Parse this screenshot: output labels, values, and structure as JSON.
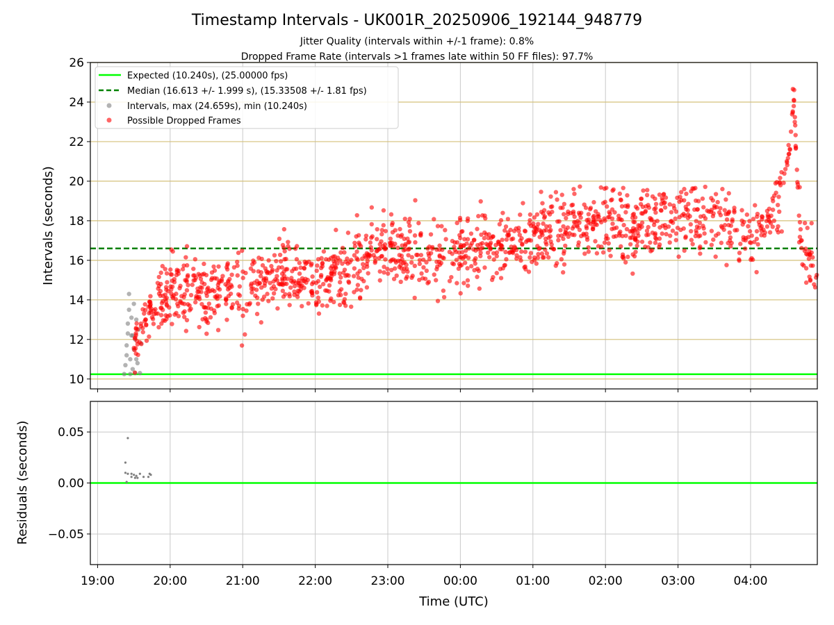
{
  "title": "Timestamp Intervals - UK001R_20250906_192144_948779",
  "subtitle_1": "Jitter Quality (intervals within +/-1 frame): 0.8%",
  "subtitle_2": "Dropped Frame Rate (intervals >1 frames late within 50 FF files): 97.7%",
  "colors": {
    "expected": "#00ff00",
    "median": "#008000",
    "intervals": "#808080",
    "dropped": "#ff0000",
    "grid_top": "#d4c07a",
    "grid": "#c8c8c8"
  },
  "chart_data": [
    {
      "type": "scatter",
      "name": "intervals",
      "ylabel": "Intervals (seconds)",
      "ylim": [
        9.5,
        26
      ],
      "yticks": [
        "10",
        "12",
        "14",
        "16",
        "18",
        "20",
        "22",
        "24",
        "26"
      ],
      "xlim_hours": [
        18.9,
        28.92
      ],
      "grid": true,
      "legend_position": "upper-left",
      "legend": [
        "Expected (10.240s), (25.00000 fps)",
        "Median (16.613 +/- 1.999 s), (15.33508 +/- 1.81 fps)",
        "Intervals, max (24.659s), min (10.240s)",
        "Possible Dropped Frames"
      ],
      "expected_line": 10.24,
      "median_line": 16.6,
      "max_interval": 24.659,
      "min_interval": 10.24,
      "dropped_trend": [
        [
          "19:30",
          11.5
        ],
        [
          "19:40",
          13.2
        ],
        [
          "19:55",
          14.2
        ],
        [
          "20:20",
          14.6
        ],
        [
          "20:40",
          14.3
        ],
        [
          "21:00",
          14.5
        ],
        [
          "21:20",
          15.0
        ],
        [
          "21:40",
          15.3
        ],
        [
          "22:00",
          14.6
        ],
        [
          "22:20",
          15.3
        ],
        [
          "22:40",
          16.2
        ],
        [
          "23:00",
          16.6
        ],
        [
          "23:30",
          16.3
        ],
        [
          "00:00",
          16.3
        ],
        [
          "00:30",
          16.7
        ],
        [
          "01:00",
          17.3
        ],
        [
          "01:30",
          17.6
        ],
        [
          "02:00",
          17.9
        ],
        [
          "02:30",
          18.0
        ],
        [
          "03:00",
          18.1
        ],
        [
          "03:30",
          18.2
        ],
        [
          "03:50",
          17.6
        ],
        [
          "04:05",
          17.4
        ],
        [
          "04:15",
          18.0
        ],
        [
          "04:25",
          19.2
        ],
        [
          "04:32",
          21.5
        ],
        [
          "04:36",
          24.3
        ],
        [
          "04:40",
          17.5
        ],
        [
          "04:55",
          15.0
        ]
      ],
      "intervals_gray": [
        [
          "19:22",
          10.25
        ],
        [
          "19:23",
          10.7
        ],
        [
          "19:24",
          11.2
        ],
        [
          "19:24",
          11.7
        ],
        [
          "19:25",
          12.3
        ],
        [
          "19:25",
          12.8
        ],
        [
          "19:26",
          13.5
        ],
        [
          "19:26",
          14.3
        ],
        [
          "19:27",
          10.25
        ],
        [
          "19:27",
          11.0
        ],
        [
          "19:28",
          12.2
        ],
        [
          "19:28",
          13.1
        ],
        [
          "19:29",
          10.5
        ],
        [
          "19:29",
          12.2
        ],
        [
          "19:30",
          11.5
        ],
        [
          "19:30",
          13.8
        ],
        [
          "19:31",
          10.3
        ],
        [
          "19:31",
          12.0
        ],
        [
          "19:32",
          11.0
        ],
        [
          "19:32",
          13.0
        ],
        [
          "19:33",
          10.8
        ],
        [
          "19:34",
          12.5
        ],
        [
          "19:35",
          10.3
        ],
        [
          "19:36",
          11.8
        ]
      ]
    },
    {
      "type": "scatter",
      "name": "residuals",
      "ylabel": "Residuals (seconds)",
      "xlabel": "Time (UTC)",
      "ylim": [
        -0.08,
        0.08
      ],
      "yticks": [
        "0.05",
        "0.00",
        "−0.05"
      ],
      "xticks": [
        "19:00",
        "20:00",
        "21:00",
        "22:00",
        "23:00",
        "00:00",
        "01:00",
        "02:00",
        "03:00",
        "04:00"
      ],
      "xlim_hours": [
        18.9,
        28.92
      ],
      "grid": true,
      "zero_line": 0.0,
      "points": [
        [
          "19:23",
          0.02
        ],
        [
          "19:23",
          0.01
        ],
        [
          "19:25",
          0.044
        ],
        [
          "19:25",
          0.009
        ],
        [
          "19:24",
          0.001
        ],
        [
          "19:28",
          0.009
        ],
        [
          "19:28",
          0.006
        ],
        [
          "19:30",
          0.008
        ],
        [
          "19:31",
          0.005
        ],
        [
          "19:32",
          0.007
        ],
        [
          "19:33",
          0.005
        ],
        [
          "19:35",
          0.009
        ],
        [
          "19:38",
          0.006
        ],
        [
          "19:42",
          0.006
        ],
        [
          "19:43",
          0.009
        ],
        [
          "19:44",
          0.008
        ]
      ]
    }
  ]
}
